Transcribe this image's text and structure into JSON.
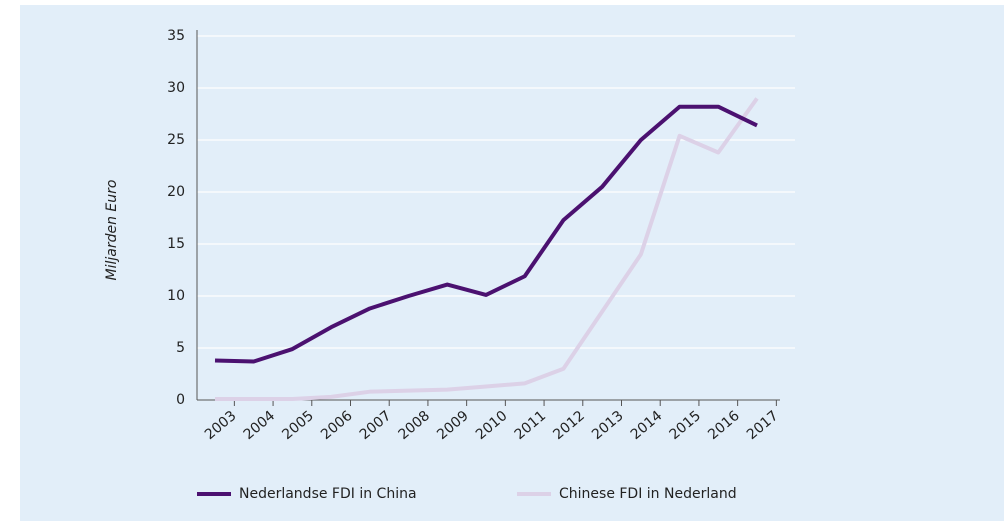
{
  "chart_data": {
    "type": "line",
    "y_label": "Miljarden Euro",
    "categories": [
      "2003",
      "2004",
      "2005",
      "2006",
      "2007",
      "2008",
      "2009",
      "2010",
      "2011",
      "2012",
      "2013",
      "2014",
      "2015",
      "2016",
      "2017"
    ],
    "series": [
      {
        "name": "Nederlandse FDI in China",
        "color": "#4b1170",
        "values": [
          3.8,
          3.7,
          4.9,
          7.0,
          8.8,
          10.0,
          11.1,
          10.1,
          11.9,
          17.3,
          20.5,
          25.0,
          28.2,
          28.2,
          26.4
        ]
      },
      {
        "name": "Chinese FDI in Nederland",
        "color": "#dcd1e7",
        "values": [
          0.1,
          0.1,
          0.1,
          0.3,
          0.8,
          0.9,
          1.0,
          1.3,
          1.6,
          3.0,
          8.5,
          14.0,
          25.4,
          23.8,
          29.0
        ]
      }
    ],
    "ylim": [
      0,
      35
    ],
    "yticks": [
      0,
      5,
      10,
      15,
      20,
      25,
      30,
      35
    ],
    "grid": true
  }
}
